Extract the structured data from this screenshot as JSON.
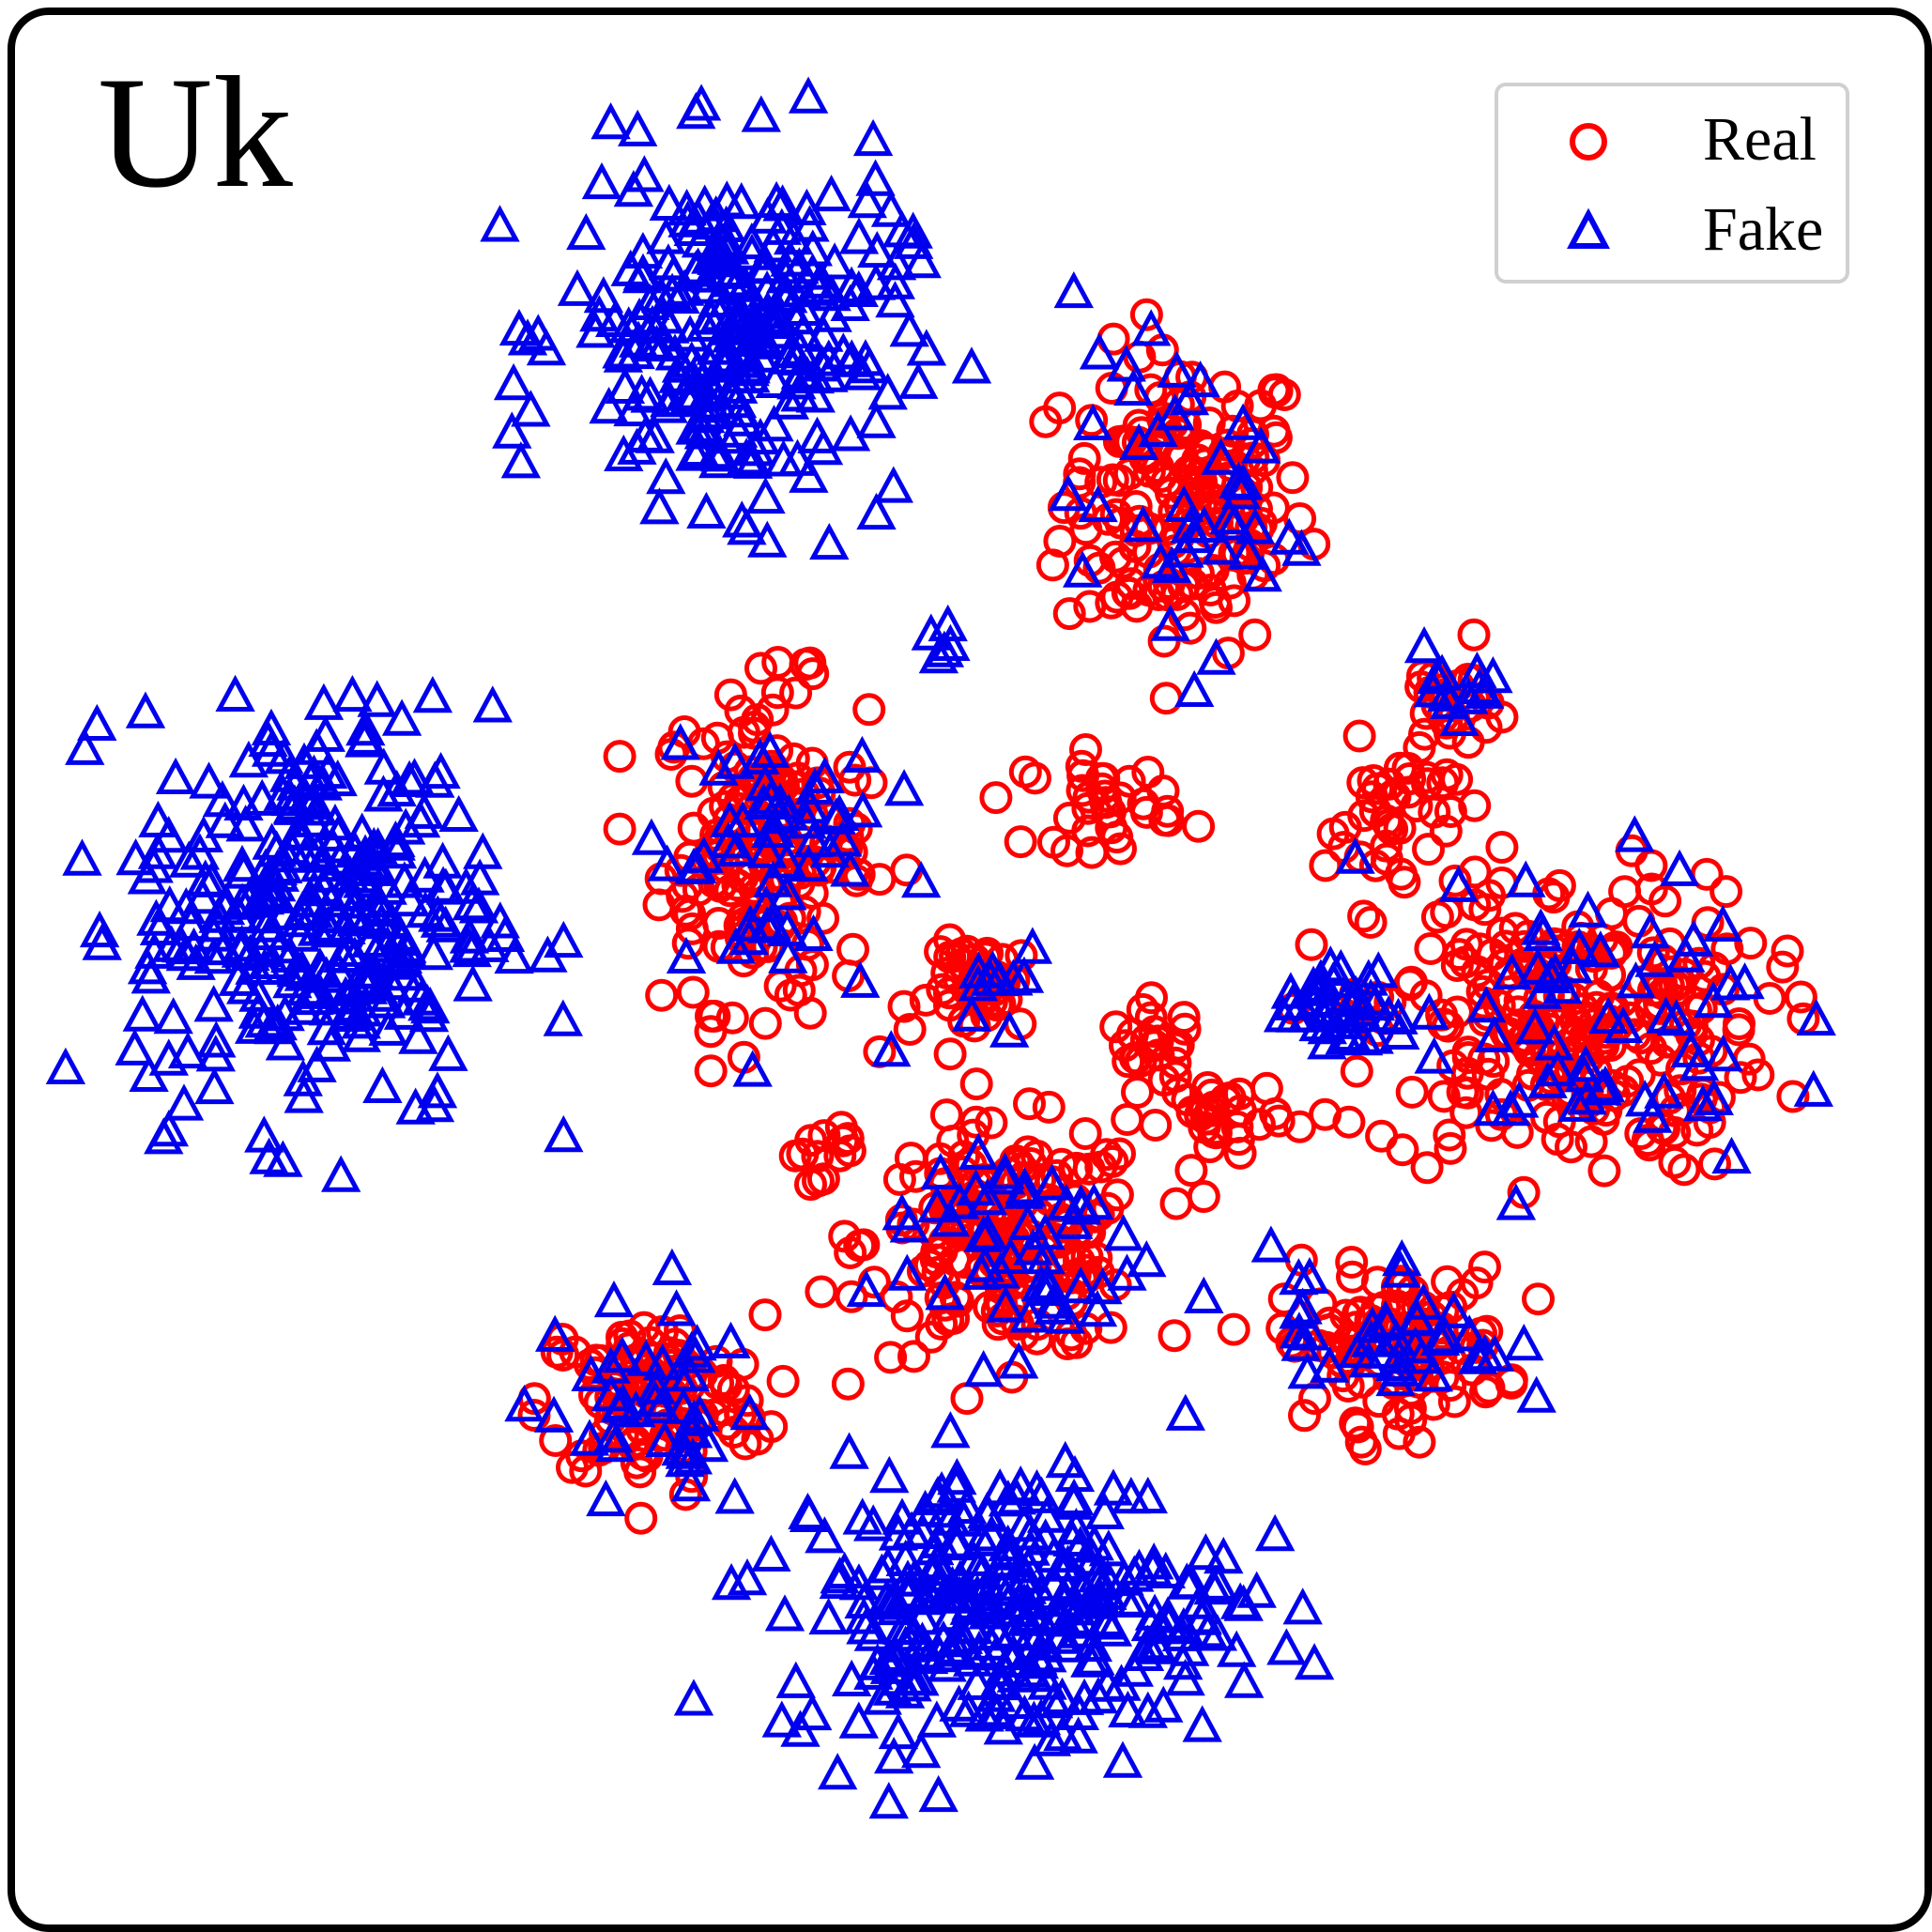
{
  "panel_label": "Uk",
  "colors": {
    "real": "#ff0000",
    "fake": "#0000ee"
  },
  "chart_data": {
    "type": "scatter",
    "title": "",
    "xlabel": "",
    "ylabel": "",
    "grid": false,
    "legend_position": "top-right",
    "xlim": [
      0,
      100
    ],
    "ylim": [
      0,
      100
    ],
    "series": [
      {
        "name": "Real",
        "marker": "circle-open",
        "color": "#ff0000",
        "clusters": [
          {
            "cx": 61.5,
            "cy": 75.0,
            "rx": 6.5,
            "ry": 8.0,
            "n": 170
          },
          {
            "cx": 39.0,
            "cy": 56.5,
            "rx": 5.5,
            "ry": 8.5,
            "n": 180
          },
          {
            "cx": 52.0,
            "cy": 35.5,
            "rx": 7.5,
            "ry": 6.0,
            "n": 190
          },
          {
            "cx": 33.0,
            "cy": 27.0,
            "rx": 6.0,
            "ry": 4.5,
            "n": 120
          },
          {
            "cx": 82.0,
            "cy": 47.0,
            "rx": 10.5,
            "ry": 8.0,
            "n": 260
          },
          {
            "cx": 72.5,
            "cy": 30.0,
            "rx": 6.0,
            "ry": 4.0,
            "n": 110
          },
          {
            "cx": 51.0,
            "cy": 49.0,
            "rx": 3.0,
            "ry": 2.5,
            "n": 45
          },
          {
            "cx": 57.0,
            "cy": 59.0,
            "rx": 4.0,
            "ry": 2.5,
            "n": 35
          },
          {
            "cx": 60.0,
            "cy": 45.5,
            "rx": 2.5,
            "ry": 2.5,
            "n": 25
          },
          {
            "cx": 63.5,
            "cy": 42.0,
            "rx": 3.0,
            "ry": 2.5,
            "n": 30
          },
          {
            "cx": 42.0,
            "cy": 40.5,
            "rx": 2.0,
            "ry": 1.5,
            "n": 12
          },
          {
            "cx": 73.0,
            "cy": 58.0,
            "rx": 4.0,
            "ry": 4.0,
            "n": 40
          },
          {
            "cx": 75.5,
            "cy": 64.0,
            "rx": 2.5,
            "ry": 3.0,
            "n": 25
          }
        ]
      },
      {
        "name": "Fake",
        "marker": "triangle-open",
        "color": "#0000ee",
        "clusters": [
          {
            "cx": 37.5,
            "cy": 84.0,
            "rx": 9.0,
            "ry": 9.0,
            "n": 260
          },
          {
            "cx": 15.0,
            "cy": 53.0,
            "rx": 9.5,
            "ry": 11.0,
            "n": 300
          },
          {
            "cx": 52.0,
            "cy": 16.0,
            "rx": 12.0,
            "ry": 7.5,
            "n": 300
          },
          {
            "cx": 61.5,
            "cy": 75.0,
            "rx": 6.0,
            "ry": 8.0,
            "n": 40
          },
          {
            "cx": 39.0,
            "cy": 56.5,
            "rx": 6.0,
            "ry": 8.5,
            "n": 55
          },
          {
            "cx": 52.0,
            "cy": 35.5,
            "rx": 7.5,
            "ry": 6.0,
            "n": 50
          },
          {
            "cx": 33.0,
            "cy": 27.0,
            "rx": 6.0,
            "ry": 5.0,
            "n": 40
          },
          {
            "cx": 82.0,
            "cy": 47.0,
            "rx": 11.0,
            "ry": 8.5,
            "n": 65
          },
          {
            "cx": 72.5,
            "cy": 31.0,
            "rx": 6.5,
            "ry": 4.5,
            "n": 40
          },
          {
            "cx": 69.5,
            "cy": 48.0,
            "rx": 2.5,
            "ry": 2.0,
            "n": 30
          },
          {
            "cx": 48.5,
            "cy": 67.5,
            "rx": 1.0,
            "ry": 0.8,
            "n": 5
          },
          {
            "cx": 76.0,
            "cy": 65.0,
            "rx": 2.5,
            "ry": 3.0,
            "n": 12
          },
          {
            "cx": 52.0,
            "cy": 49.5,
            "rx": 2.5,
            "ry": 2.0,
            "n": 10
          }
        ]
      }
    ]
  }
}
